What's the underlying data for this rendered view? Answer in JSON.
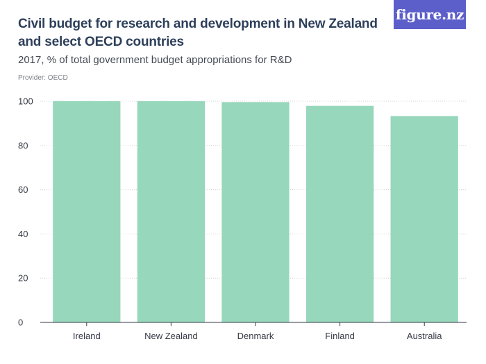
{
  "header": {
    "title": "Civil budget for research and development in New Zealand and select OECD countries",
    "subtitle": "2017, % of total government budget appropriations for R&D",
    "provider": "Provider: OECD",
    "logo_text": "figure.nz"
  },
  "colors": {
    "bar": "#97d7bc",
    "grid": "#cfd3d8",
    "axis": "#333a44",
    "logo_bg": "#5c5fc9"
  },
  "chart_data": {
    "type": "bar",
    "categories": [
      "Ireland",
      "New Zealand",
      "Denmark",
      "Finland",
      "Australia"
    ],
    "values": [
      100,
      100,
      99.6,
      97.9,
      93.3
    ],
    "title": "Civil budget for research and development in New Zealand and select OECD countries",
    "subtitle": "2017, % of total government budget appropriations for R&D",
    "xlabel": "",
    "ylabel": "",
    "ylim": [
      0,
      100
    ],
    "yticks": [
      0,
      20,
      40,
      60,
      80,
      100
    ],
    "grid": true,
    "legend": "none"
  }
}
